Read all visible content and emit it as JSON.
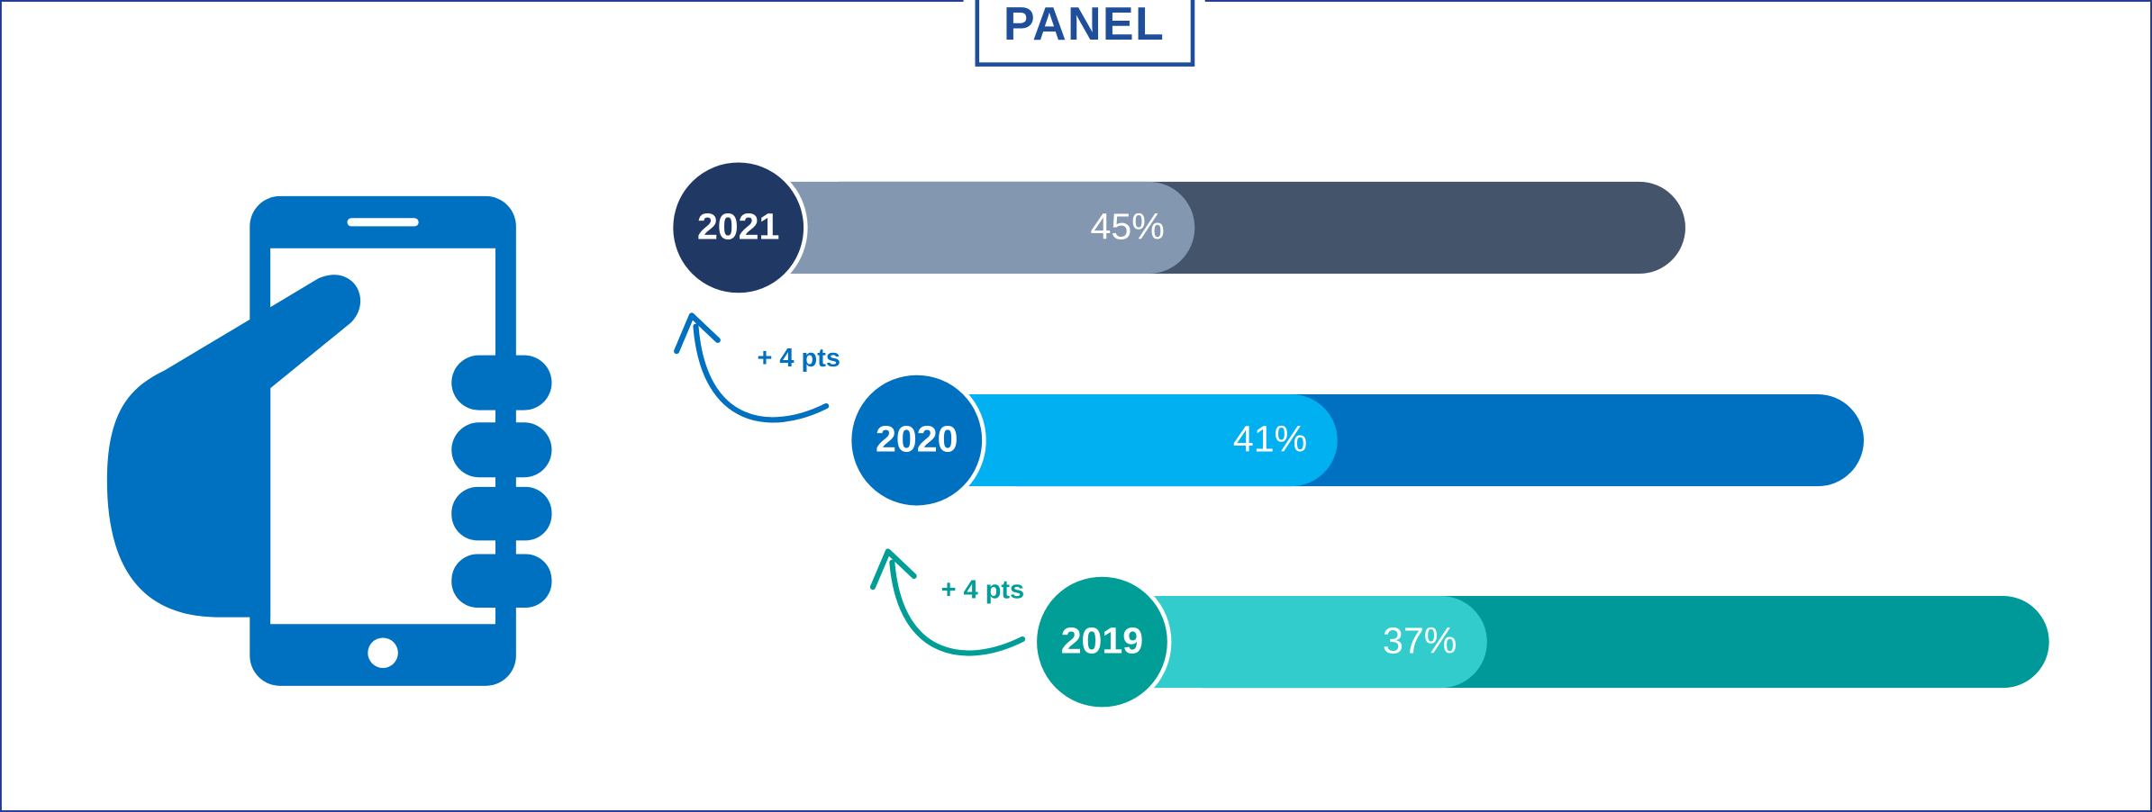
{
  "logo": "PANEL",
  "chart_data": {
    "type": "bar",
    "categories": [
      "2021",
      "2020",
      "2019"
    ],
    "values": [
      45,
      41,
      37
    ],
    "value_labels": [
      "45%",
      "41%",
      "37%"
    ],
    "circle_colors": [
      "#1f3864",
      "#0070c0",
      "#009e96"
    ],
    "fill_colors": [
      "#8497b0",
      "#00b0f0",
      "#33cccc"
    ],
    "track_colors": [
      "#44546a",
      "#0070c0",
      "#009999"
    ],
    "annotations": [
      {
        "text": "+ 4 pts",
        "color": "#0070c0"
      },
      {
        "text": "+ 4 pts",
        "color": "#009e96"
      }
    ]
  }
}
